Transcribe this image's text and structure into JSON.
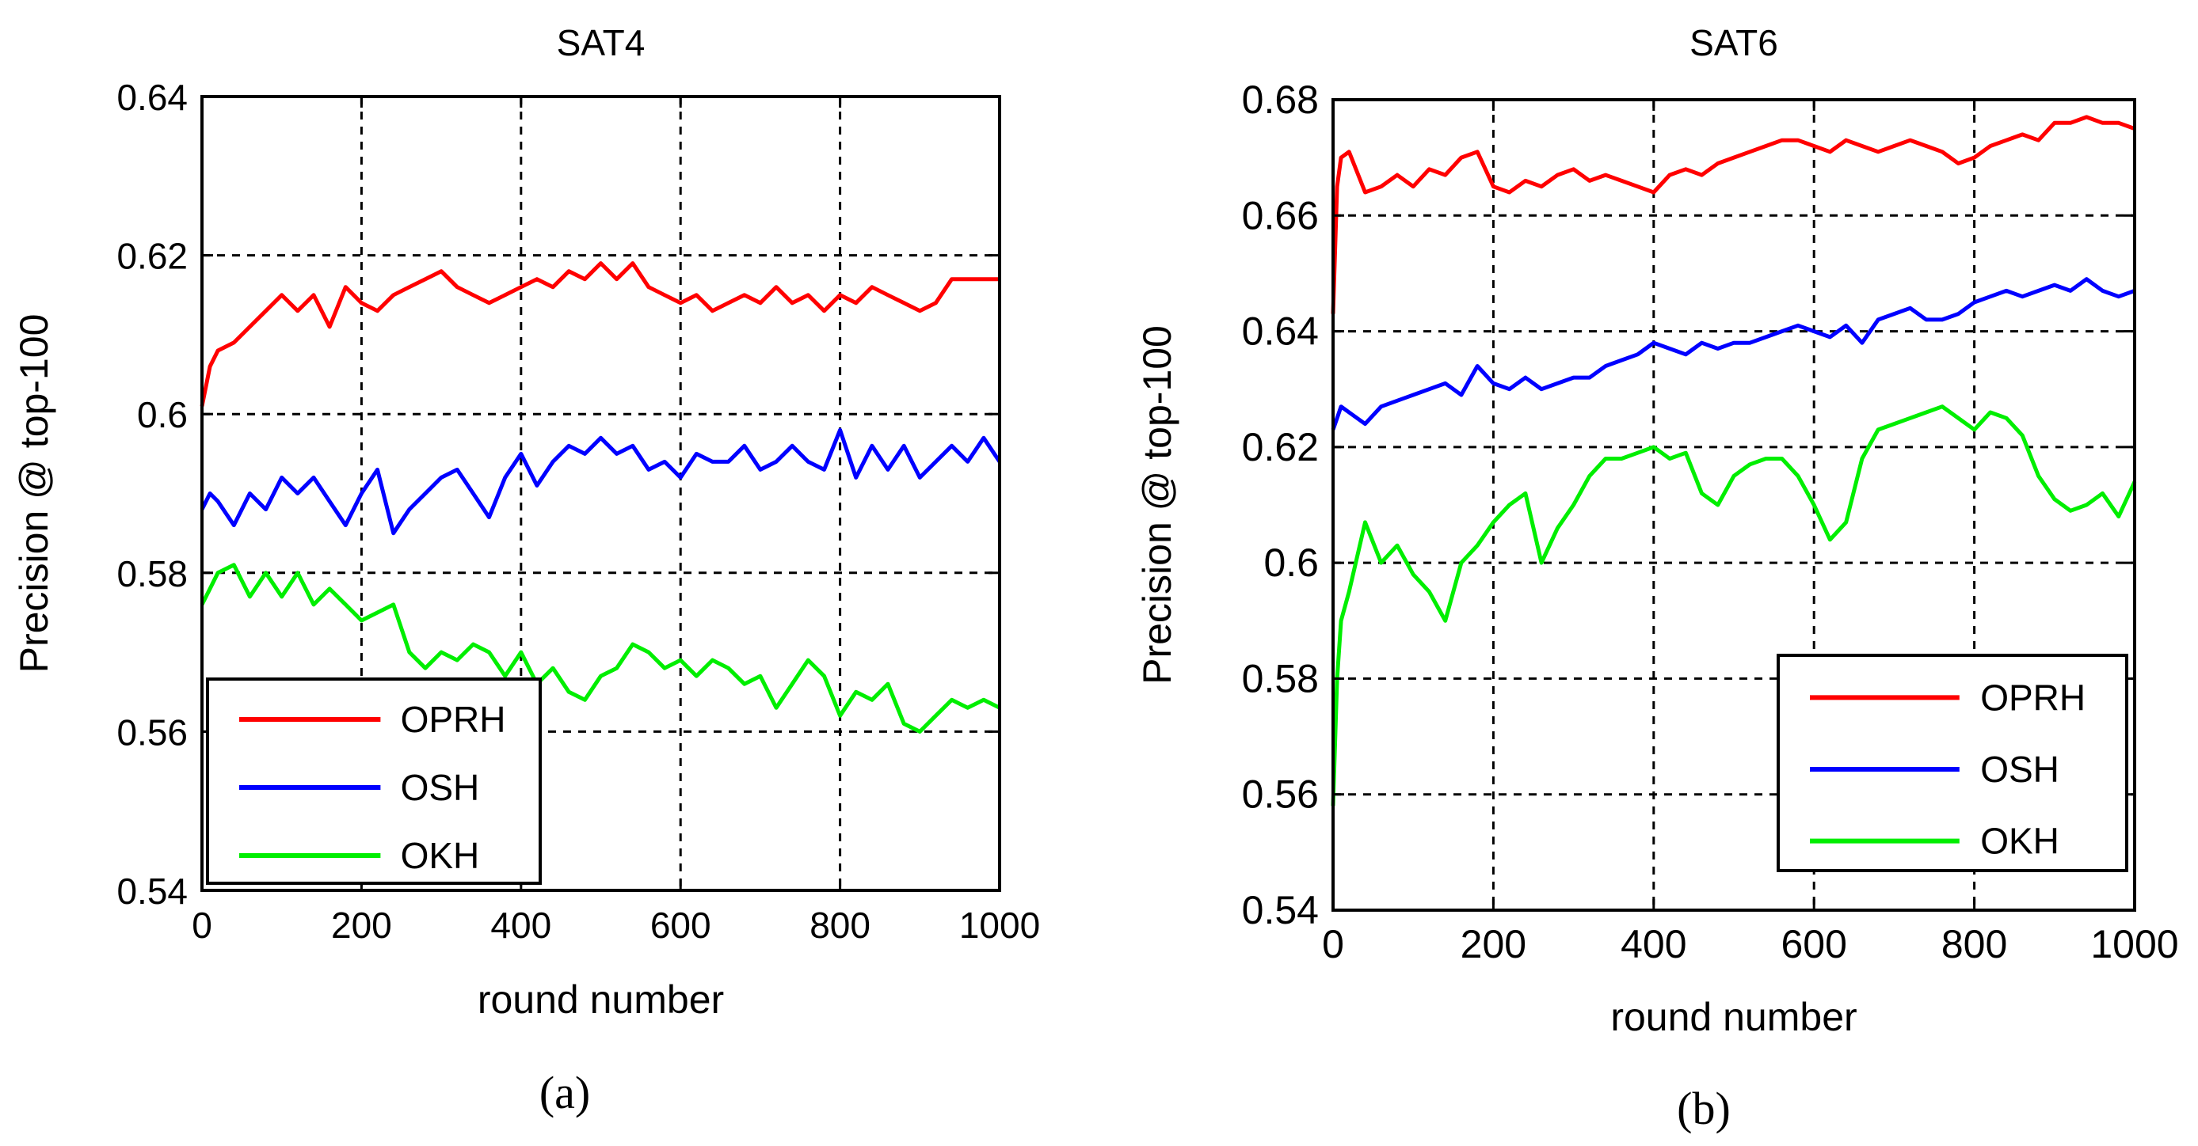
{
  "chart_data": [
    {
      "panel": "(a)",
      "type": "line",
      "title": "SAT4",
      "xlabel": "round number",
      "ylabel": "Precision @ top-100",
      "xlim": [
        0,
        1000
      ],
      "ylim": [
        0.54,
        0.64
      ],
      "xticks": [
        "0",
        "200",
        "400",
        "600",
        "800",
        "1000"
      ],
      "yticks": [
        "0.54",
        "0.56",
        "0.58",
        "0.6",
        "0.62",
        "0.64"
      ],
      "grid": true,
      "legend_position": "lower-left",
      "x": [
        0,
        10,
        20,
        40,
        60,
        80,
        100,
        120,
        140,
        160,
        180,
        200,
        220,
        240,
        260,
        280,
        300,
        320,
        340,
        360,
        380,
        400,
        420,
        440,
        460,
        480,
        500,
        520,
        540,
        560,
        580,
        600,
        620,
        640,
        660,
        680,
        700,
        720,
        740,
        760,
        780,
        800,
        820,
        840,
        860,
        880,
        900,
        920,
        940,
        960,
        980,
        1000
      ],
      "series": [
        {
          "name": "OPRH",
          "color": "#ff0000",
          "values": [
            0.601,
            0.606,
            0.608,
            0.609,
            0.611,
            0.613,
            0.615,
            0.613,
            0.615,
            0.611,
            0.616,
            0.614,
            0.613,
            0.615,
            0.616,
            0.617,
            0.618,
            0.616,
            0.615,
            0.614,
            0.615,
            0.616,
            0.617,
            0.616,
            0.618,
            0.617,
            0.619,
            0.617,
            0.619,
            0.616,
            0.615,
            0.614,
            0.615,
            0.613,
            0.614,
            0.615,
            0.614,
            0.616,
            0.614,
            0.615,
            0.613,
            0.615,
            0.614,
            0.616,
            0.615,
            0.614,
            0.613,
            0.614,
            0.617,
            0.617,
            0.617,
            0.617
          ]
        },
        {
          "name": "OSH",
          "color": "#0000ff",
          "values": [
            0.588,
            0.59,
            0.589,
            0.586,
            0.59,
            0.588,
            0.592,
            0.59,
            0.592,
            0.589,
            0.586,
            0.59,
            0.593,
            0.585,
            0.588,
            0.59,
            0.592,
            0.593,
            0.59,
            0.587,
            0.592,
            0.595,
            0.591,
            0.594,
            0.596,
            0.595,
            0.597,
            0.595,
            0.596,
            0.593,
            0.594,
            0.592,
            0.595,
            0.594,
            0.594,
            0.596,
            0.593,
            0.594,
            0.596,
            0.594,
            0.593,
            0.598,
            0.592,
            0.596,
            0.593,
            0.596,
            0.592,
            0.594,
            0.596,
            0.594,
            0.597,
            0.594
          ]
        },
        {
          "name": "OKH",
          "color": "#00ee00",
          "values": [
            0.576,
            0.578,
            0.58,
            0.581,
            0.577,
            0.58,
            0.577,
            0.58,
            0.576,
            0.578,
            0.576,
            0.574,
            0.575,
            0.576,
            0.57,
            0.568,
            0.57,
            0.569,
            0.571,
            0.57,
            0.567,
            0.57,
            0.566,
            0.568,
            0.565,
            0.564,
            0.567,
            0.568,
            0.571,
            0.57,
            0.568,
            0.569,
            0.567,
            0.569,
            0.568,
            0.566,
            0.567,
            0.563,
            0.566,
            0.569,
            0.567,
            0.562,
            0.565,
            0.564,
            0.566,
            0.561,
            0.56,
            0.562,
            0.564,
            0.563,
            0.564,
            0.563
          ]
        }
      ]
    },
    {
      "panel": "(b)",
      "type": "line",
      "title": "SAT6",
      "xlabel": "round number",
      "ylabel": "Precision @ top-100",
      "xlim": [
        0,
        1000
      ],
      "ylim": [
        0.54,
        0.68
      ],
      "xticks": [
        "0",
        "200",
        "400",
        "600",
        "800",
        "1000"
      ],
      "yticks": [
        "0.54",
        "0.56",
        "0.58",
        "0.6",
        "0.62",
        "0.64",
        "0.66",
        "0.68"
      ],
      "grid": true,
      "legend_position": "lower-right",
      "x": [
        0,
        5,
        10,
        20,
        40,
        60,
        80,
        100,
        120,
        140,
        160,
        180,
        200,
        220,
        240,
        260,
        280,
        300,
        320,
        340,
        360,
        380,
        400,
        420,
        440,
        460,
        480,
        500,
        520,
        540,
        560,
        580,
        600,
        620,
        640,
        660,
        680,
        700,
        720,
        740,
        760,
        780,
        800,
        820,
        840,
        860,
        880,
        900,
        920,
        940,
        960,
        980,
        1000
      ],
      "series": [
        {
          "name": "OPRH",
          "color": "#ff0000",
          "values": [
            0.643,
            0.665,
            0.67,
            0.671,
            0.664,
            0.665,
            0.667,
            0.665,
            0.668,
            0.667,
            0.67,
            0.671,
            0.665,
            0.664,
            0.666,
            0.665,
            0.667,
            0.668,
            0.666,
            0.667,
            0.666,
            0.665,
            0.664,
            0.667,
            0.668,
            0.667,
            0.669,
            0.67,
            0.671,
            0.672,
            0.673,
            0.673,
            0.672,
            0.671,
            0.673,
            0.672,
            0.671,
            0.672,
            0.673,
            0.672,
            0.671,
            0.669,
            0.67,
            0.672,
            0.673,
            0.674,
            0.673,
            0.676,
            0.676,
            0.677,
            0.676,
            0.676,
            0.675
          ]
        },
        {
          "name": "OSH",
          "color": "#0000ff",
          "values": [
            0.623,
            0.625,
            0.627,
            0.626,
            0.624,
            0.627,
            0.628,
            0.629,
            0.63,
            0.631,
            0.629,
            0.634,
            0.631,
            0.63,
            0.632,
            0.63,
            0.631,
            0.632,
            0.632,
            0.634,
            0.635,
            0.636,
            0.638,
            0.637,
            0.636,
            0.638,
            0.637,
            0.638,
            0.638,
            0.639,
            0.64,
            0.641,
            0.64,
            0.639,
            0.641,
            0.638,
            0.642,
            0.643,
            0.644,
            0.642,
            0.642,
            0.643,
            0.645,
            0.646,
            0.647,
            0.646,
            0.647,
            0.648,
            0.647,
            0.649,
            0.647,
            0.646,
            0.647
          ]
        },
        {
          "name": "OKH",
          "color": "#00ee00",
          "values": [
            0.558,
            0.58,
            0.59,
            0.595,
            0.607,
            0.6,
            0.603,
            0.598,
            0.595,
            0.59,
            0.6,
            0.603,
            0.607,
            0.61,
            0.612,
            0.6,
            0.606,
            0.61,
            0.615,
            0.618,
            0.618,
            0.619,
            0.62,
            0.618,
            0.619,
            0.612,
            0.61,
            0.615,
            0.617,
            0.618,
            0.618,
            0.615,
            0.61,
            0.604,
            0.607,
            0.618,
            0.623,
            0.624,
            0.625,
            0.626,
            0.627,
            0.625,
            0.623,
            0.626,
            0.625,
            0.622,
            0.615,
            0.611,
            0.609,
            0.61,
            0.612,
            0.608,
            0.614
          ]
        }
      ]
    }
  ],
  "captions": [
    "(a)",
    "(b)"
  ]
}
